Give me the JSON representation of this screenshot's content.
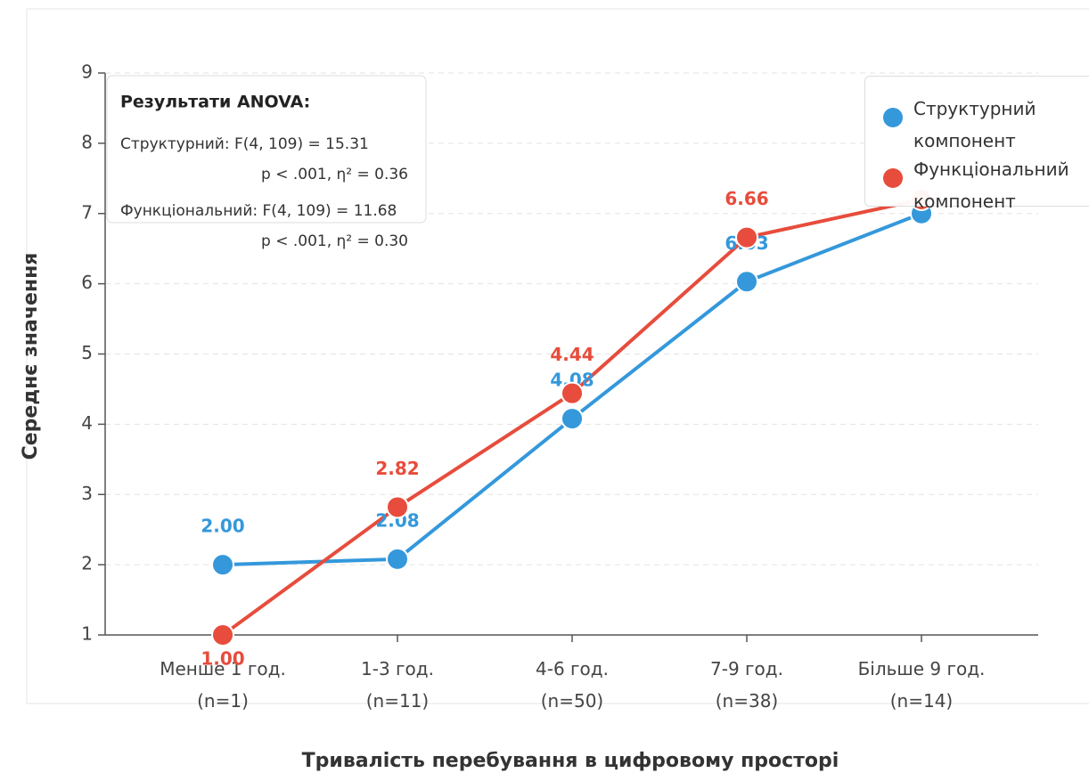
{
  "chart_data": {
    "type": "line",
    "x_label": "Тривалість перебування в цифровому просторі",
    "y_label": "Середнє значення",
    "categories": [
      "Менше 1 год.\n(n=1)",
      "1-3 год.\n(n=11)",
      "4-6 год.\n(n=50)",
      "7-9 год.\n(n=38)",
      "Більше 9 год.\n(n=14)"
    ],
    "series": [
      {
        "name": "Структурний компонент",
        "color": "#3498db",
        "values": [
          2.0,
          2.08,
          4.08,
          6.03,
          7.0
        ],
        "value_labels": [
          "2.00",
          "2.08",
          "4.08",
          "6.03",
          null
        ]
      },
      {
        "name": "Функціональний компонент",
        "color": "#e74c3c",
        "values": [
          1.0,
          2.82,
          4.44,
          6.66,
          7.2
        ],
        "value_labels": [
          "1.00",
          "2.82",
          "4.44",
          "6.66",
          null
        ]
      }
    ],
    "ylim": [
      1,
      9
    ],
    "yticks": [
      1,
      2,
      3,
      4,
      5,
      6,
      7,
      8,
      9
    ],
    "grid": true,
    "legend": "upper right",
    "annotation": {
      "title": "Результати ANOVA:",
      "lines": [
        "Структурний: F(4, 109) = 15.31",
        "p < .001, η² = 0.36",
        "Функціональний: F(4, 109) = 11.68",
        "p < .001, η² = 0.30"
      ]
    }
  }
}
